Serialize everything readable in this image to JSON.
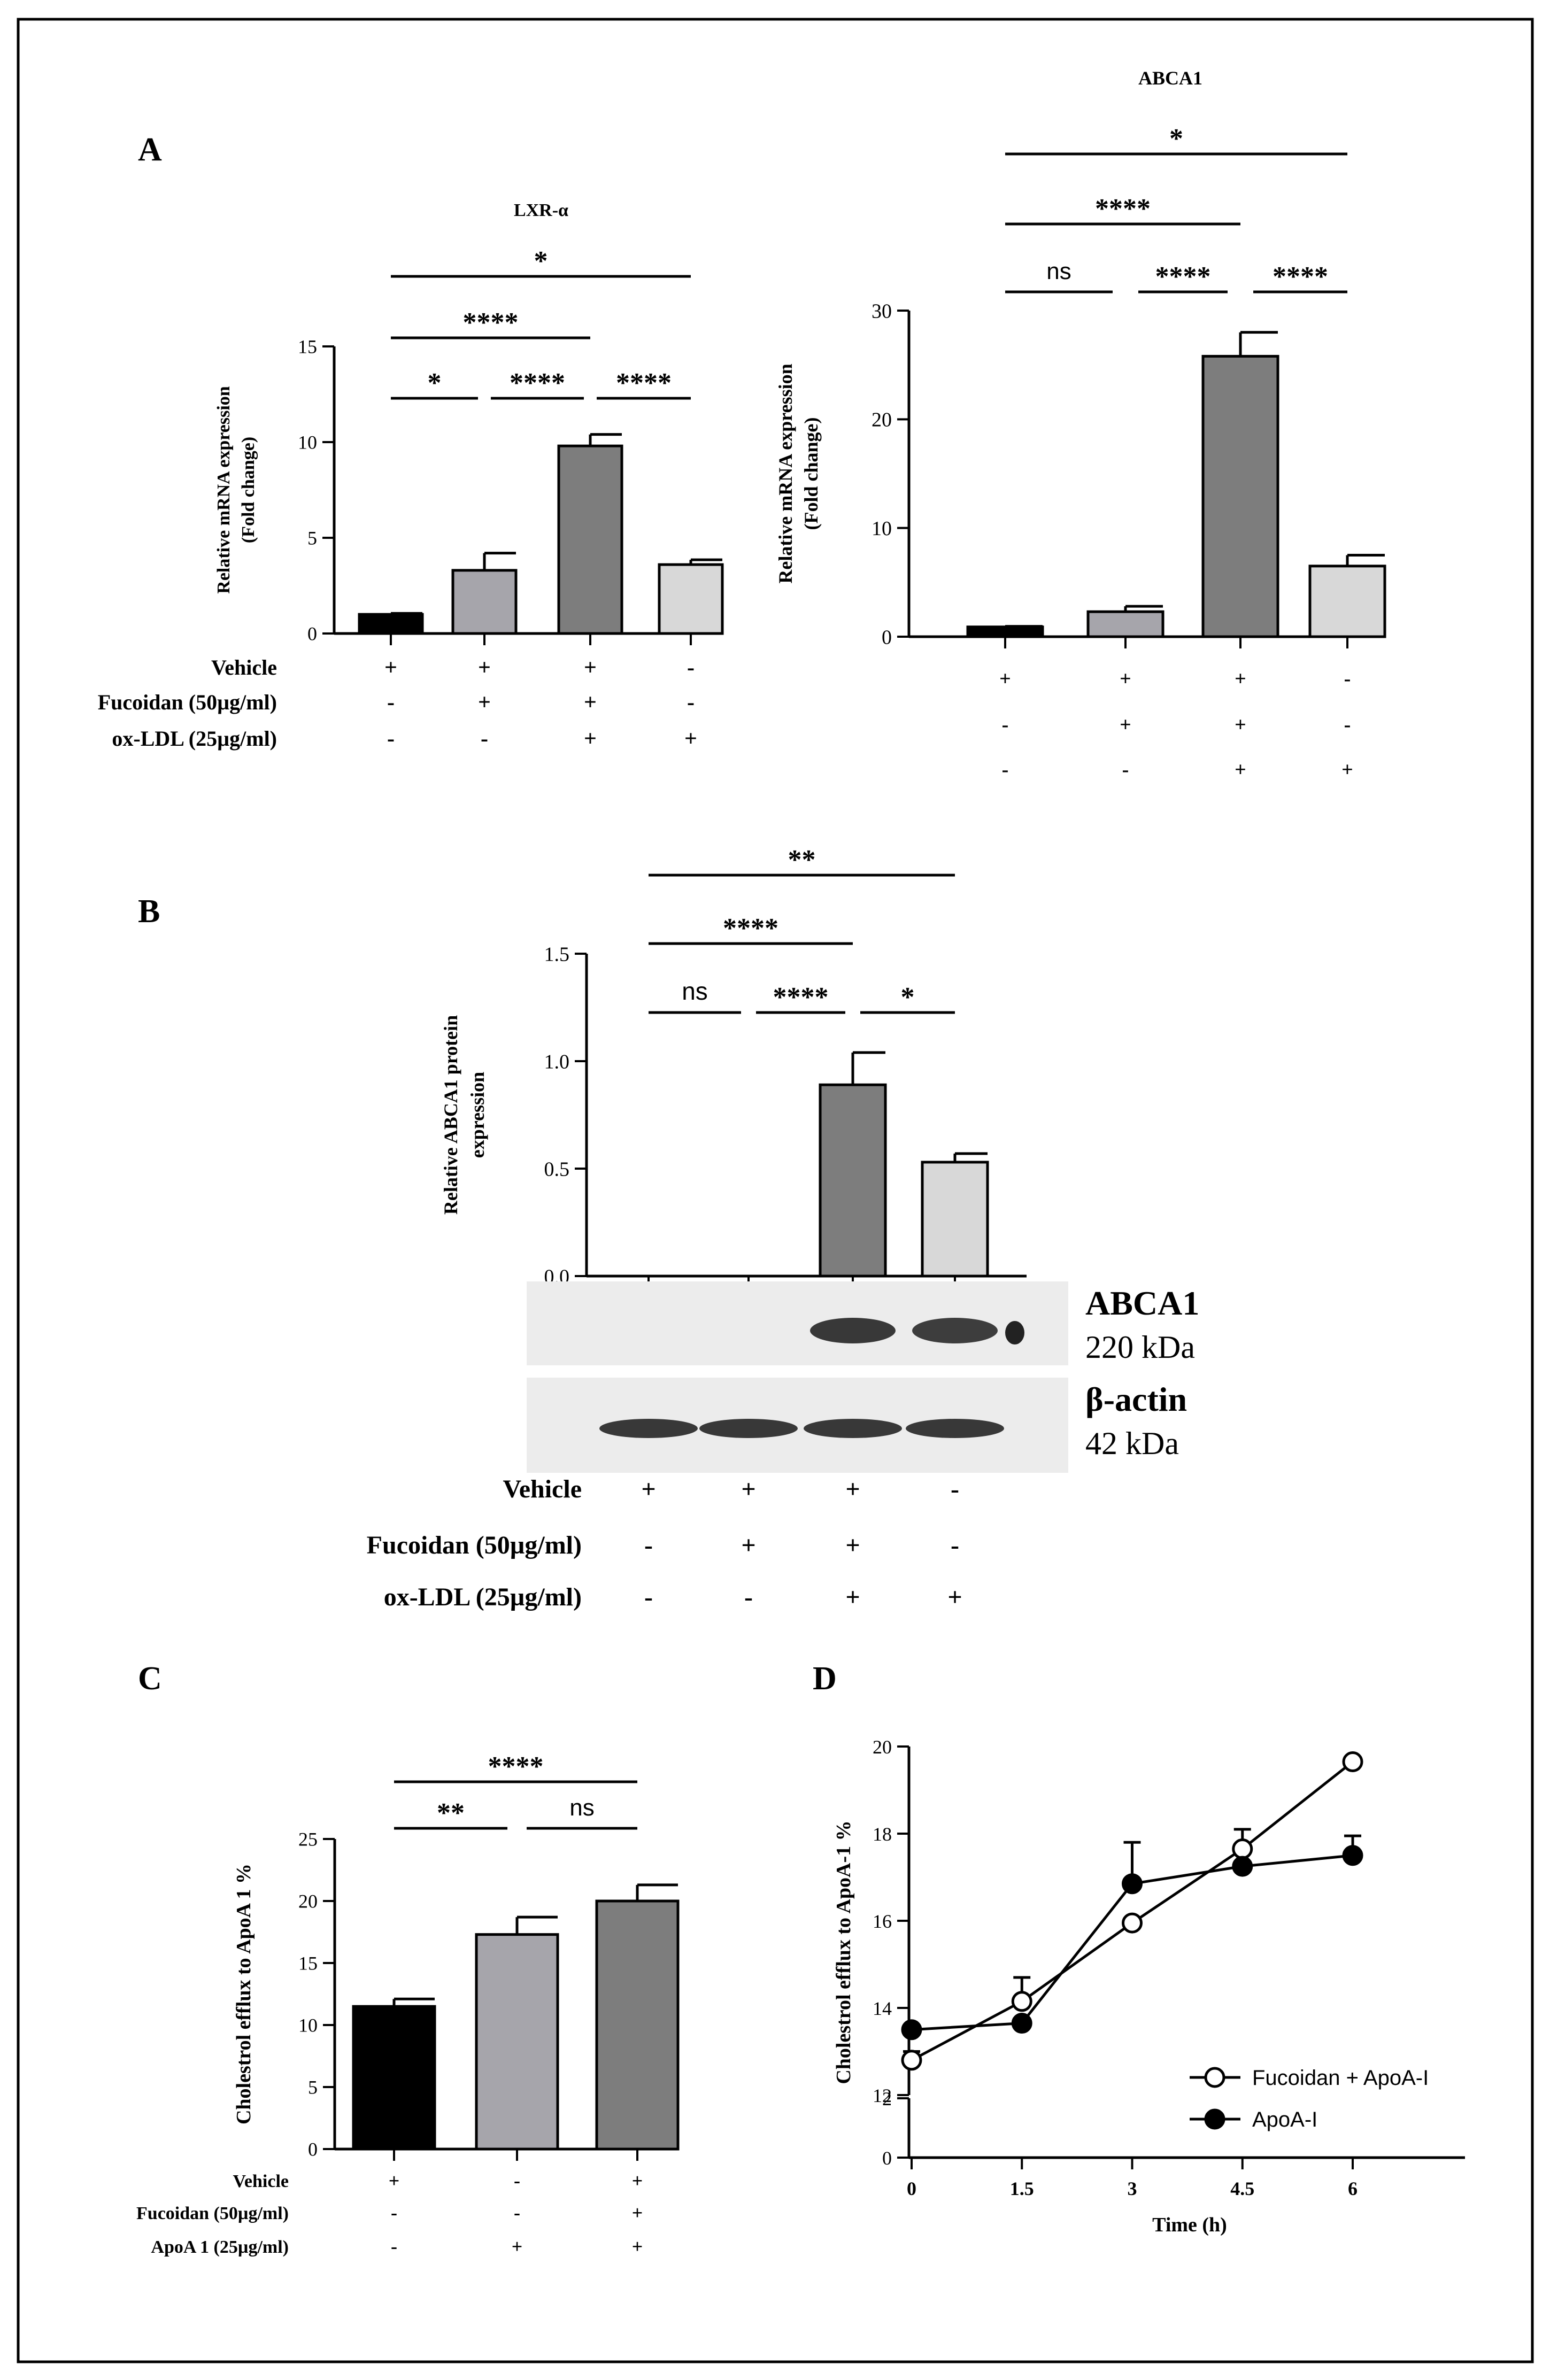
{
  "panels": {
    "A": "A",
    "B": "B",
    "C": "C",
    "D": "D"
  },
  "chart_data": [
    {
      "id": "lxr",
      "type": "bar",
      "title": "LXR-α",
      "ylabel_lines": [
        "Relative mRNA expression",
        "(Fold change)"
      ],
      "ylim": [
        0,
        15
      ],
      "yticks": [
        "0",
        "5",
        "10",
        "15"
      ],
      "yticks_values": [
        0,
        5,
        10,
        15
      ],
      "values": [
        1.0,
        3.3,
        9.8,
        3.6
      ],
      "errors": [
        0.05,
        0.9,
        0.6,
        0.25
      ],
      "colors": [
        "#000000",
        "#a6a5ab",
        "#7d7d7d",
        "#d8d8d8"
      ],
      "comparisons": [
        {
          "from": 0,
          "to": 1,
          "label": "*"
        },
        {
          "from": 1,
          "to": 2,
          "label": "****"
        },
        {
          "from": 2,
          "to": 3,
          "label": "****"
        },
        {
          "from": 0,
          "to": 2,
          "label": "****"
        },
        {
          "from": 0,
          "to": 3,
          "label": "*"
        }
      ],
      "conditions": [
        {
          "label": "Vehicle",
          "signs": [
            "+",
            "+",
            "+",
            "-"
          ]
        },
        {
          "label": "Fucoidan (50µg/ml)",
          "signs": [
            "-",
            "+",
            "+",
            "-"
          ]
        },
        {
          "label": "ox-LDL (25µg/ml)",
          "signs": [
            "-",
            "-",
            "+",
            "+"
          ]
        }
      ]
    },
    {
      "id": "abca1",
      "type": "bar",
      "title": "ABCA1",
      "ylabel_lines": [
        "Relative mRNA expression",
        "(Fold change)"
      ],
      "ylim": [
        0,
        30
      ],
      "yticks": [
        "0",
        "10",
        "20",
        "30"
      ],
      "yticks_values": [
        0,
        10,
        20,
        30
      ],
      "values": [
        0.9,
        2.3,
        25.8,
        6.5
      ],
      "errors": [
        0.05,
        0.5,
        2.2,
        1.0
      ],
      "colors": [
        "#000000",
        "#a6a5ab",
        "#7d7d7d",
        "#d8d8d8"
      ],
      "comparisons": [
        {
          "from": 0,
          "to": 1,
          "label": "ns"
        },
        {
          "from": 1,
          "to": 2,
          "label": "****"
        },
        {
          "from": 2,
          "to": 3,
          "label": "****"
        },
        {
          "from": 0,
          "to": 2,
          "label": "****"
        },
        {
          "from": 0,
          "to": 3,
          "label": "*"
        }
      ],
      "conditions": [
        {
          "label": "",
          "signs": [
            "+",
            "+",
            "+",
            "-"
          ]
        },
        {
          "label": "",
          "signs": [
            "-",
            "+",
            "+",
            "-"
          ]
        },
        {
          "label": "",
          "signs": [
            "-",
            "-",
            "+",
            "+"
          ]
        }
      ]
    },
    {
      "id": "protein",
      "type": "bar",
      "title": "",
      "ylabel_lines": [
        "Relative ABCA1 protein",
        "expression"
      ],
      "ylim": [
        0,
        1.5
      ],
      "yticks": [
        "0.0",
        "0.5",
        "1.0",
        "1.5"
      ],
      "yticks_values": [
        0,
        0.5,
        1.0,
        1.5
      ],
      "values": [
        0,
        0,
        0.89,
        0.53
      ],
      "errors": [
        0,
        0,
        0.15,
        0.04
      ],
      "colors": [
        "#000000",
        "#a6a5ab",
        "#7d7d7d",
        "#d8d8d8"
      ],
      "comparisons": [
        {
          "from": 0,
          "to": 1,
          "label": "ns"
        },
        {
          "from": 1,
          "to": 2,
          "label": "****"
        },
        {
          "from": 2,
          "to": 3,
          "label": "*"
        },
        {
          "from": 0,
          "to": 2,
          "label": "****"
        },
        {
          "from": 0,
          "to": 3,
          "label": "**"
        }
      ],
      "blots": [
        {
          "name": "ABCA1",
          "size": "220 kDa",
          "bands": [
            0,
            0,
            1,
            0.85
          ]
        },
        {
          "name": "β-actin",
          "size": "42 kDa",
          "bands": [
            1,
            1,
            1,
            1
          ]
        }
      ],
      "conditions": [
        {
          "label": "Vehicle",
          "signs": [
            "+",
            "+",
            "+",
            "-"
          ]
        },
        {
          "label": "Fucoidan (50µg/ml)",
          "signs": [
            "-",
            "+",
            "+",
            "-"
          ]
        },
        {
          "label": "ox-LDL (25µg/ml)",
          "signs": [
            "-",
            "-",
            "+",
            "+"
          ]
        }
      ]
    },
    {
      "id": "efflux",
      "type": "bar",
      "title": "",
      "ylabel_lines": [
        "Cholestrol efflux to ApoA 1  %"
      ],
      "ylim": [
        0,
        25
      ],
      "yticks": [
        "0",
        "5",
        "10",
        "15",
        "20",
        "25"
      ],
      "yticks_values": [
        0,
        5,
        10,
        15,
        20,
        25
      ],
      "values": [
        11.5,
        17.3,
        20.0
      ],
      "errors": [
        0.6,
        1.4,
        1.3
      ],
      "colors": [
        "#000000",
        "#a6a5ab",
        "#7d7d7d"
      ],
      "comparisons": [
        {
          "from": 0,
          "to": 1,
          "label": "**"
        },
        {
          "from": 1,
          "to": 2,
          "label": "ns"
        },
        {
          "from": 0,
          "to": 2,
          "label": "****"
        }
      ],
      "conditions": [
        {
          "label": "Vehicle",
          "signs": [
            "+",
            "-",
            "+"
          ]
        },
        {
          "label": "Fucoidan (50µg/ml)",
          "signs": [
            "-",
            "-",
            "+"
          ]
        },
        {
          "label": "ApoA 1 (25µg/ml)",
          "signs": [
            "-",
            "+",
            "+"
          ]
        }
      ]
    },
    {
      "id": "time",
      "type": "line",
      "title": "",
      "xlabel": "Time (h)",
      "ylabel_lines": [
        "Cholestrol efflux to ApoA-1  %"
      ],
      "x": [
        0,
        1.5,
        3,
        4.5,
        6
      ],
      "xticks": [
        "0",
        "1.5",
        "3",
        "4.5",
        "6"
      ],
      "yticks_upper": [
        "12",
        "14",
        "16",
        "18",
        "20"
      ],
      "yticks_upper_values": [
        12,
        14,
        16,
        18,
        20
      ],
      "yticks_lower": [
        "0",
        "2"
      ],
      "yticks_lower_values": [
        0,
        2
      ],
      "series": [
        {
          "name": "Fucoidan + ApoA-I",
          "marker": "open",
          "values": [
            12.8,
            14.15,
            15.95,
            17.65,
            19.65
          ],
          "errors": [
            0.2,
            0.55,
            0,
            0.45,
            0
          ]
        },
        {
          "name": "ApoA-I",
          "marker": "filled",
          "values": [
            13.5,
            13.65,
            16.85,
            17.25,
            17.5
          ],
          "errors": [
            0,
            0,
            0.95,
            0,
            0.45
          ]
        }
      ]
    }
  ]
}
